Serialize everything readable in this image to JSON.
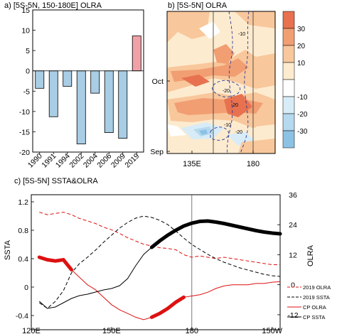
{
  "chart_data": [
    {
      "type": "bar",
      "panel": "a",
      "title": "a) [5S-5N, 150-180E] OLRA",
      "categories": [
        "1990",
        "1991",
        "1994",
        "2002",
        "2004",
        "2006",
        "2009",
        "2019"
      ],
      "values": [
        -4.3,
        -11.3,
        -3.8,
        -18,
        -5.5,
        -15.2,
        -16.6,
        8.6
      ],
      "ylim": [
        -20,
        15
      ],
      "yticks": [
        -20,
        -15,
        -10,
        -5,
        0,
        5,
        10,
        15
      ],
      "colors": {
        "negative": "#a8cde4",
        "positive": "#f0a1a7"
      }
    },
    {
      "type": "heatmap",
      "panel": "b",
      "title": "b) [5S-5N] OLRA",
      "xticks": [
        "135E",
        "180"
      ],
      "yticks": [
        "Oct",
        "Sep"
      ],
      "colorbar_ticks": [
        "30",
        "20",
        "10",
        "-10",
        "-20",
        "-30"
      ],
      "contour_labels": [
        "-10",
        "-20",
        "-20",
        "-10",
        "-20"
      ],
      "colors": [
        "#e8714f",
        "#f19e72",
        "#f8c79b",
        "#fdebcf",
        "#ffffff",
        "#d8ecf7",
        "#b5d9ee",
        "#8cc2e4"
      ]
    },
    {
      "type": "line",
      "panel": "c",
      "title": "c) [5S-5N] SSTA&OLRA",
      "xticks": [
        "120E",
        "150E",
        "180",
        "150W"
      ],
      "y_left": {
        "label": "SSTA",
        "ticks": [
          "-0.4",
          "0",
          "0.4",
          "0.8",
          "1.2"
        ],
        "range": [
          -0.6,
          1.3
        ]
      },
      "y_right": {
        "label": "OLRA",
        "ticks": [
          "-12",
          "0",
          "12",
          "24",
          "36"
        ],
        "range": [
          -18,
          36
        ],
        "color": "#dd1111"
      },
      "x": [
        123,
        126,
        129,
        132,
        135,
        138,
        141,
        144,
        147,
        150,
        153,
        156,
        159,
        162,
        165,
        168,
        171,
        174,
        177,
        180,
        183,
        186,
        189,
        192,
        195,
        198,
        201,
        204,
        207,
        210,
        213
      ],
      "series": [
        {
          "name": "2019 OLRA",
          "axis": "right",
          "color": "#dd1111",
          "dash": "dashed",
          "values": [
            29,
            28,
            28.5,
            29,
            28,
            26.5,
            25.5,
            24.5,
            23,
            22,
            20.5,
            18.8,
            17.5,
            16.2,
            15.5,
            14.8,
            14.5,
            14,
            12,
            11,
            11.5,
            11,
            10.5,
            11,
            10.5,
            10,
            9.5,
            9,
            8.5,
            8,
            8
          ]
        },
        {
          "name": "2019 SSTA",
          "axis": "left",
          "color": "#000000",
          "dash": "dashed",
          "values": [
            -0.22,
            -0.3,
            -0.2,
            -0.05,
            0.2,
            0.33,
            0.42,
            0.52,
            0.63,
            0.73,
            0.83,
            0.91,
            0.97,
            1.0,
            0.98,
            0.94,
            0.88,
            0.79,
            0.69,
            0.6,
            0.53,
            0.46,
            0.4,
            0.35,
            0.31,
            0.27,
            0.24,
            0.21,
            0.18,
            0.16,
            0.15
          ]
        },
        {
          "name": "CP OLRA",
          "axis": "right",
          "color": "#dd1111",
          "dash": "solid",
          "values": [
            11,
            10,
            9.5,
            10,
            6,
            3,
            0,
            -2,
            -5,
            -8,
            -10,
            -11.5,
            -13,
            -14,
            -13,
            -11.5,
            -9.5,
            -7,
            -5,
            -4.5,
            -4,
            -3,
            -1.5,
            -0.5,
            0,
            0,
            0,
            0.5,
            0.5,
            1,
            1.2
          ]
        },
        {
          "name": "CP SSTA",
          "axis": "left",
          "color": "#000000",
          "dash": "solid",
          "values": [
            -0.2,
            -0.3,
            -0.28,
            -0.22,
            -0.16,
            -0.12,
            -0.1,
            -0.07,
            -0.04,
            -0.02,
            0.02,
            0.12,
            0.3,
            0.46,
            0.56,
            0.65,
            0.73,
            0.8,
            0.86,
            0.9,
            0.925,
            0.93,
            0.915,
            0.895,
            0.87,
            0.845,
            0.82,
            0.795,
            0.775,
            0.76,
            0.75
          ]
        }
      ],
      "legend_position": "right"
    }
  ]
}
